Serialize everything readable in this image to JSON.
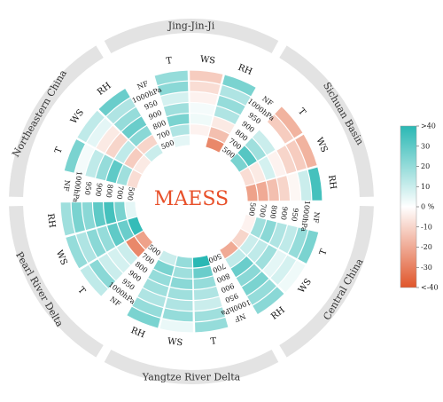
{
  "chart_data": {
    "type": "heatmap",
    "title": "MAESS",
    "title_color": "#e8502a",
    "colorbar": {
      "ticks": [
        ">40",
        "30",
        "20",
        "10",
        "0 %",
        "-10",
        "-20",
        "-30",
        "<-40"
      ],
      "tick_values": [
        40,
        30,
        20,
        10,
        0,
        -10,
        -20,
        -30,
        -40
      ],
      "range": [
        -40,
        40
      ],
      "color_high": "#2ab8b4",
      "color_mid": "#ffffff",
      "color_low": "#e0552a"
    },
    "levels": [
      "NF",
      "1000hPa",
      "950",
      "900",
      "800",
      "700",
      "500"
    ],
    "region_ring_color": "#e3e3e3",
    "regions": [
      {
        "name": "Jing-Jin-Ji",
        "variables": [
          {
            "name": "T",
            "values": [
              20,
              22,
              8,
              18,
              25,
              15,
              5
            ]
          },
          {
            "name": "WS",
            "values": [
              -12,
              -8,
              -3,
              2,
              3,
              -3,
              0
            ]
          },
          {
            "name": "RH",
            "values": [
              25,
              15,
              20,
              15,
              -5,
              -15,
              -28
            ]
          }
        ]
      },
      {
        "name": "Sichuan Basin",
        "variables": [
          {
            "name": "T",
            "values": [
              -18,
              -12,
              0,
              10,
              18,
              32,
              25
            ]
          },
          {
            "name": "WS",
            "values": [
              -18,
              -12,
              -10,
              -3,
              8,
              -5,
              -8
            ]
          },
          {
            "name": "RH",
            "values": [
              35,
              10,
              -2,
              -10,
              -15,
              -20,
              -22
            ]
          }
        ]
      },
      {
        "name": "Central China",
        "variables": [
          {
            "name": "T",
            "values": [
              25,
              20,
              12,
              15,
              22,
              18,
              -3
            ]
          },
          {
            "name": "WS",
            "values": [
              3,
              8,
              5,
              18,
              12,
              10,
              -10
            ]
          },
          {
            "name": "RH",
            "values": [
              22,
              20,
              25,
              22,
              28,
              12,
              -20
            ]
          }
        ]
      },
      {
        "name": "Yangtze River Delta",
        "variables": [
          {
            "name": "T",
            "values": [
              20,
              18,
              10,
              15,
              20,
              28,
              40
            ]
          },
          {
            "name": "WS",
            "values": [
              4,
              20,
              15,
              18,
              22,
              18,
              20
            ]
          },
          {
            "name": "RH",
            "values": [
              25,
              20,
              15,
              18,
              20,
              25,
              10
            ]
          }
        ]
      },
      {
        "name": "Pearl River Delta",
        "variables": [
          {
            "name": "T",
            "values": [
              12,
              22,
              10,
              8,
              10,
              -28,
              -22
            ]
          },
          {
            "name": "WS",
            "values": [
              20,
              15,
              22,
              20,
              30,
              28,
              38
            ]
          },
          {
            "name": "RH",
            "values": [
              18,
              25,
              22,
              30,
              35,
              25,
              5
            ]
          }
        ]
      },
      {
        "name": "Northeastern China",
        "variables": [
          {
            "name": "T",
            "values": [
              25,
              2,
              12,
              20,
              30,
              18,
              -8
            ]
          },
          {
            "name": "WS",
            "values": [
              12,
              5,
              -5,
              -10,
              12,
              -12,
              -5
            ]
          },
          {
            "name": "RH",
            "values": [
              28,
              15,
              20,
              28,
              22,
              -10,
              10
            ]
          }
        ]
      }
    ]
  }
}
